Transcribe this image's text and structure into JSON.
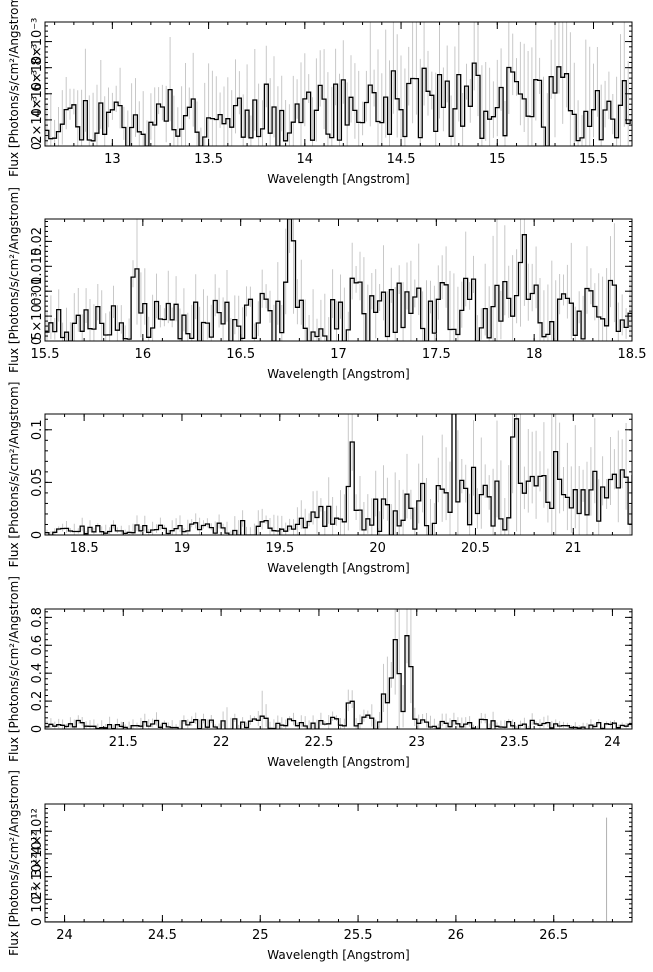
{
  "chart_data": [
    {
      "type": "line",
      "style": "step-histogram-with-errorbars",
      "xlabel": "Wavelength [Angstrom]",
      "ylabel": "Flux [Photons/s/cm²/Angstrom]",
      "xlim": [
        12.65,
        15.7
      ],
      "ylim": [
        0,
        0.0095
      ],
      "xticks": [
        13,
        13.5,
        14,
        14.5,
        15,
        15.5
      ],
      "xtick_labels": [
        "13",
        "13.5",
        "14",
        "14.5",
        "15",
        "15.5"
      ],
      "yticks": [
        0,
        0.002,
        0.004,
        0.006,
        0.008
      ],
      "ytick_labels": [
        "0",
        "2×10⁻³",
        "4×10⁻³",
        "6×10⁻³",
        "8×10⁻³"
      ],
      "color": "#000000",
      "error_color": "#c8c8c8",
      "profile": [
        [
          12.65,
          0.0022
        ],
        [
          14.0,
          0.0026
        ],
        [
          14.6,
          0.0034
        ],
        [
          15.7,
          0.0034
        ]
      ],
      "noise": 0.55,
      "peaks": [],
      "bin_width": 0.02,
      "seed": 11
    },
    {
      "type": "line",
      "style": "step-histogram-with-errorbars",
      "xlabel": "Wavelength [Angstrom]",
      "ylabel": "Flux [Photons/s/cm²/Angstrom]",
      "xlim": [
        15.5,
        18.5
      ],
      "ylim": [
        0,
        0.0245
      ],
      "xticks": [
        15.5,
        16,
        16.5,
        17,
        17.5,
        18,
        18.5
      ],
      "xtick_labels": [
        "15.5",
        "16",
        "16.5",
        "17",
        "17.5",
        "18",
        "18.5"
      ],
      "yticks": [
        0,
        0.005,
        0.01,
        0.015,
        0.02
      ],
      "ytick_labels": [
        "0",
        "5×10⁻³",
        "0.01",
        "0.015",
        "0.02"
      ],
      "color": "#000000",
      "error_color": "#c8c8c8",
      "profile": [
        [
          15.5,
          0.0035
        ],
        [
          16.5,
          0.0045
        ],
        [
          17.0,
          0.0065
        ],
        [
          18.5,
          0.0075
        ]
      ],
      "noise": 0.6,
      "peaks": [
        [
          15.96,
          0.009
        ],
        [
          16.75,
          0.014
        ],
        [
          17.8,
          0.013
        ],
        [
          17.93,
          0.015
        ]
      ],
      "bin_width": 0.02,
      "seed": 23
    },
    {
      "type": "line",
      "style": "step-histogram-with-errorbars",
      "xlabel": "Wavelength [Angstrom]",
      "ylabel": "Flux [Photons/s/cm²/Angstrom]",
      "xlim": [
        18.3,
        21.3
      ],
      "ylim": [
        0,
        0.115
      ],
      "xticks": [
        18.5,
        19,
        19.5,
        20,
        20.5,
        21
      ],
      "xtick_labels": [
        "18.5",
        "19",
        "19.5",
        "20",
        "20.5",
        "21"
      ],
      "yticks": [
        0,
        0.05,
        0.1
      ],
      "ytick_labels": [
        "0",
        "0.05",
        "0.1"
      ],
      "color": "#000000",
      "error_color": "#c8c8c8",
      "profile": [
        [
          18.3,
          0.004
        ],
        [
          19.0,
          0.006
        ],
        [
          19.5,
          0.01
        ],
        [
          20.0,
          0.022
        ],
        [
          20.5,
          0.035
        ],
        [
          21.3,
          0.035
        ]
      ],
      "noise": 0.55,
      "peaks": [
        [
          20.38,
          0.07
        ],
        [
          20.7,
          0.08
        ],
        [
          20.9,
          0.07
        ],
        [
          19.85,
          0.05
        ]
      ],
      "bin_width": 0.02,
      "seed": 37
    },
    {
      "type": "line",
      "style": "step-histogram-with-errorbars",
      "xlabel": "Wavelength [Angstrom]",
      "ylabel": "Flux [Photons/s/cm²/Angstrom]",
      "xlim": [
        21.1,
        24.1
      ],
      "ylim": [
        0,
        0.86
      ],
      "xticks": [
        21.5,
        22,
        22.5,
        23,
        23.5,
        24
      ],
      "xtick_labels": [
        "21.5",
        "22",
        "22.5",
        "23",
        "23.5",
        "24"
      ],
      "yticks": [
        0,
        0.2,
        0.4,
        0.6,
        0.8
      ],
      "ytick_labels": [
        "0",
        "0.2",
        "0.4",
        "0.6",
        "0.8"
      ],
      "color": "#000000",
      "error_color": "#c8c8c8",
      "profile": [
        [
          21.1,
          0.03
        ],
        [
          22.5,
          0.04
        ],
        [
          22.7,
          0.06
        ],
        [
          23.2,
          0.04
        ],
        [
          24.1,
          0.02
        ]
      ],
      "noise": 0.6,
      "peaks": [
        [
          22.84,
          0.33
        ],
        [
          22.95,
          0.48
        ],
        [
          22.88,
          0.22
        ],
        [
          22.9,
          0.4
        ],
        [
          22.65,
          0.12
        ],
        [
          22.02,
          0.08
        ],
        [
          22.2,
          0.07
        ]
      ],
      "bin_width": 0.02,
      "seed": 51
    },
    {
      "type": "line",
      "style": "step-histogram-with-errorbars",
      "xlabel": "Wavelength [Angstrom]",
      "ylabel": "Flux [Photons/s/cm²/Angstrom]",
      "xlim": [
        23.9,
        26.9
      ],
      "ylim": [
        0,
        5200000000000.0
      ],
      "xticks": [
        24,
        24.5,
        25,
        25.5,
        26,
        26.5
      ],
      "xtick_labels": [
        "24",
        "24.5",
        "25",
        "25.5",
        "26",
        "26.5"
      ],
      "yticks": [
        0,
        1000000000000.0,
        2000000000000.0,
        3000000000000.0,
        4000000000000.0
      ],
      "ytick_labels": [
        "0",
        "10¹²",
        "2×10¹²",
        "3×10¹²",
        "4×10¹²"
      ],
      "color": "#000000",
      "error_color": "#c8c8c8",
      "profile": [
        [
          23.9,
          0
        ],
        [
          26.9,
          0
        ]
      ],
      "noise": 0,
      "peaks": [],
      "spike": [
        26.77,
        4600000000000.0
      ],
      "bin_width": 0.02,
      "seed": 67
    }
  ]
}
